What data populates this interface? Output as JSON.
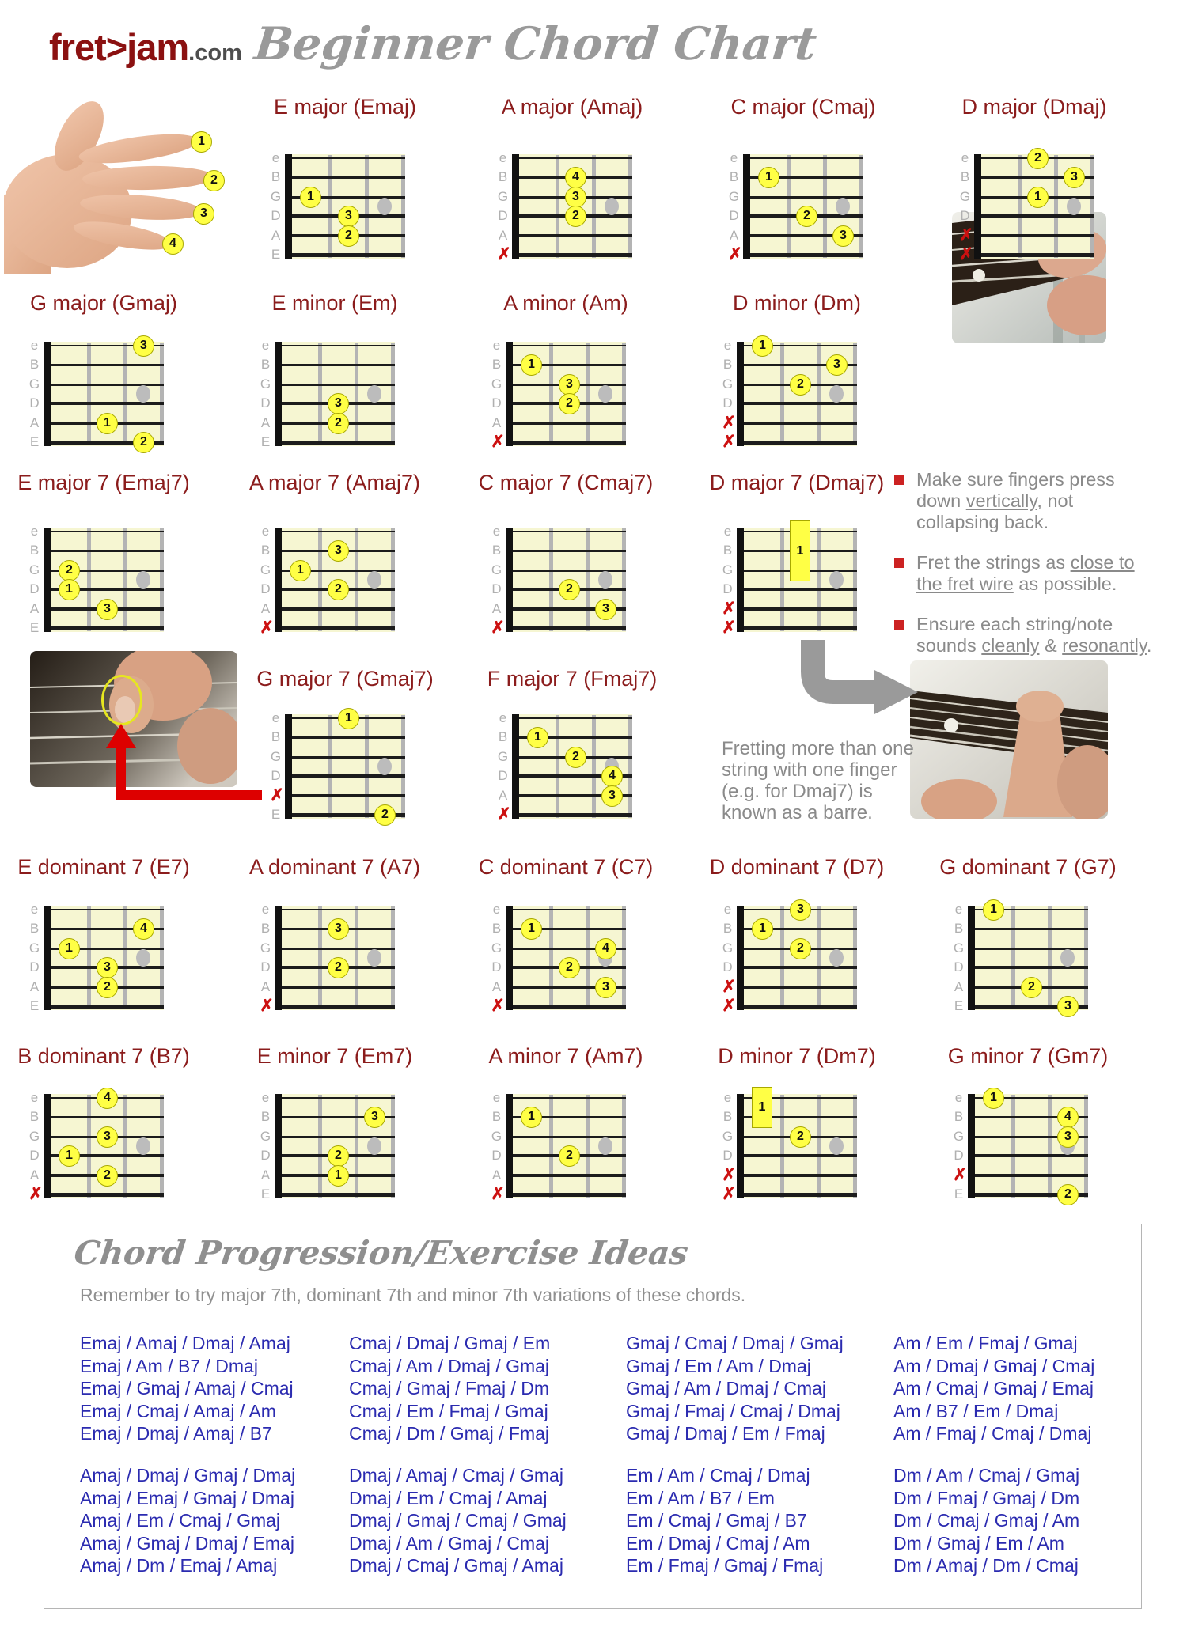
{
  "header": {
    "logo": "fret>jam",
    "logo_suffix": ".com",
    "title": "Beginner Chord Chart"
  },
  "hand": {
    "finger_numbers": [
      "1",
      "2",
      "3",
      "4"
    ]
  },
  "string_names": [
    "e",
    "B",
    "G",
    "D",
    "A",
    "E"
  ],
  "chords": [
    {
      "name": "E major (Emaj)",
      "short": "Emaj",
      "row": "r1",
      "col": 0,
      "fingers": [
        [
          "G",
          1,
          1
        ],
        [
          "D",
          2,
          3
        ],
        [
          "A",
          2,
          2
        ]
      ],
      "muted": []
    },
    {
      "name": "A major (Amaj)",
      "short": "Amaj",
      "row": "r1",
      "col": 1,
      "fingers": [
        [
          "B",
          2,
          4
        ],
        [
          "G",
          2,
          3
        ],
        [
          "D",
          2,
          2
        ]
      ],
      "muted": [
        "E"
      ]
    },
    {
      "name": "C major (Cmaj)",
      "short": "Cmaj",
      "row": "r1",
      "col": 2,
      "fingers": [
        [
          "B",
          1,
          1
        ],
        [
          "D",
          2,
          2
        ],
        [
          "A",
          3,
          3
        ]
      ],
      "muted": [
        "E"
      ]
    },
    {
      "name": "D major (Dmaj)",
      "short": "Dmaj",
      "row": "r1",
      "col": 3,
      "fingers": [
        [
          "e",
          2,
          2
        ],
        [
          "B",
          3,
          3
        ],
        [
          "G",
          2,
          1
        ]
      ],
      "muted": [
        "A",
        "E"
      ]
    },
    {
      "name": "G major (Gmaj)",
      "short": "Gmaj",
      "row": "r2",
      "col": 0,
      "fingers": [
        [
          "e",
          3,
          3
        ],
        [
          "A",
          2,
          1
        ],
        [
          "E",
          3,
          2
        ]
      ],
      "muted": []
    },
    {
      "name": "E minor (Em)",
      "short": "Em",
      "row": "r2",
      "col": 1,
      "fingers": [
        [
          "D",
          2,
          3
        ],
        [
          "A",
          2,
          2
        ]
      ],
      "muted": []
    },
    {
      "name": "A minor (Am)",
      "short": "Am",
      "row": "r2",
      "col": 2,
      "fingers": [
        [
          "B",
          1,
          1
        ],
        [
          "G",
          2,
          3
        ],
        [
          "D",
          2,
          2
        ]
      ],
      "muted": [
        "E"
      ]
    },
    {
      "name": "D minor (Dm)",
      "short": "Dm",
      "row": "r2",
      "col": 3,
      "fingers": [
        [
          "e",
          1,
          1
        ],
        [
          "B",
          3,
          3
        ],
        [
          "G",
          2,
          2
        ]
      ],
      "muted": [
        "A",
        "E"
      ]
    },
    {
      "name": "E major 7 (Emaj7)",
      "short": "Emaj7",
      "row": "r3",
      "col": 0,
      "fingers": [
        [
          "G",
          1,
          2
        ],
        [
          "D",
          1,
          1
        ],
        [
          "A",
          2,
          3
        ]
      ],
      "muted": []
    },
    {
      "name": "A major 7 (Amaj7)",
      "short": "Amaj7",
      "row": "r3",
      "col": 1,
      "fingers": [
        [
          "B",
          2,
          3
        ],
        [
          "G",
          1,
          1
        ],
        [
          "D",
          2,
          2
        ]
      ],
      "muted": [
        "E"
      ]
    },
    {
      "name": "C major 7 (Cmaj7)",
      "short": "Cmaj7",
      "row": "r3",
      "col": 2,
      "fingers": [
        [
          "D",
          2,
          2
        ],
        [
          "A",
          3,
          3
        ]
      ],
      "muted": [
        "E"
      ]
    },
    {
      "name": "D major 7 (Dmaj7)",
      "short": "Dmaj7",
      "row": "r3",
      "col": 3,
      "fingers": [],
      "muted": [
        "A",
        "E"
      ],
      "barre": {
        "fret": 2,
        "from": "e",
        "to": "G",
        "finger": 1
      }
    },
    {
      "name": "G major 7 (Gmaj7)",
      "short": "Gmaj7",
      "row": "r4",
      "col": 0,
      "fingers": [
        [
          "e",
          2,
          1
        ],
        [
          "E",
          3,
          2
        ]
      ],
      "muted": [
        "A"
      ]
    },
    {
      "name": "F major 7 (Fmaj7)",
      "short": "Fmaj7",
      "row": "r4",
      "col": 1,
      "fingers": [
        [
          "B",
          1,
          1
        ],
        [
          "G",
          2,
          2
        ],
        [
          "D",
          3,
          4
        ],
        [
          "A",
          3,
          3
        ]
      ],
      "muted": [
        "E"
      ]
    },
    {
      "name": "E dominant 7 (E7)",
      "short": "E7",
      "row": "r5",
      "col": 0,
      "fingers": [
        [
          "B",
          3,
          4
        ],
        [
          "G",
          1,
          1
        ],
        [
          "D",
          2,
          3
        ],
        [
          "A",
          2,
          2
        ]
      ],
      "muted": []
    },
    {
      "name": "A dominant 7 (A7)",
      "short": "A7",
      "row": "r5",
      "col": 1,
      "fingers": [
        [
          "B",
          2,
          3
        ],
        [
          "D",
          2,
          2
        ]
      ],
      "muted": [
        "E"
      ]
    },
    {
      "name": "C dominant 7 (C7)",
      "short": "C7",
      "row": "r5",
      "col": 2,
      "fingers": [
        [
          "B",
          1,
          1
        ],
        [
          "G",
          3,
          4
        ],
        [
          "D",
          2,
          2
        ],
        [
          "A",
          3,
          3
        ]
      ],
      "muted": [
        "E"
      ]
    },
    {
      "name": "D dominant 7 (D7)",
      "short": "D7",
      "row": "r5",
      "col": 3,
      "fingers": [
        [
          "e",
          2,
          3
        ],
        [
          "B",
          1,
          1
        ],
        [
          "G",
          2,
          2
        ]
      ],
      "muted": [
        "A",
        "E"
      ]
    },
    {
      "name": "G dominant 7 (G7)",
      "short": "G7",
      "row": "r5",
      "col": 4,
      "fingers": [
        [
          "e",
          1,
          1
        ],
        [
          "A",
          2,
          2
        ],
        [
          "E",
          3,
          3
        ]
      ],
      "muted": []
    },
    {
      "name": "B dominant 7 (B7)",
      "short": "B7",
      "row": "r6",
      "col": 0,
      "fingers": [
        [
          "e",
          2,
          4
        ],
        [
          "G",
          2,
          3
        ],
        [
          "D",
          1,
          1
        ],
        [
          "A",
          2,
          2
        ]
      ],
      "muted": [
        "E"
      ]
    },
    {
      "name": "E minor 7 (Em7)",
      "short": "Em7",
      "row": "r6",
      "col": 1,
      "fingers": [
        [
          "B",
          3,
          3
        ],
        [
          "D",
          2,
          2
        ],
        [
          "A",
          2,
          1
        ]
      ],
      "muted": []
    },
    {
      "name": "A minor 7 (Am7)",
      "short": "Am7",
      "row": "r6",
      "col": 2,
      "fingers": [
        [
          "B",
          1,
          1
        ],
        [
          "D",
          2,
          2
        ]
      ],
      "muted": [
        "E"
      ]
    },
    {
      "name": "D minor 7 (Dm7)",
      "short": "Dm7",
      "row": "r6",
      "col": 3,
      "fingers": [
        [
          "G",
          2,
          2
        ]
      ],
      "muted": [
        "A",
        "E"
      ],
      "barre": {
        "fret": 1,
        "from": "e",
        "to": "B",
        "finger": 1
      }
    },
    {
      "name": "G minor 7 (Gm7)",
      "short": "Gm7",
      "row": "r6",
      "col": 4,
      "fingers": [
        [
          "e",
          1,
          1
        ],
        [
          "B",
          3,
          4
        ],
        [
          "G",
          3,
          3
        ],
        [
          "E",
          3,
          2
        ]
      ],
      "muted": [
        "A"
      ]
    }
  ],
  "tips": [
    {
      "segments": [
        {
          "t": "Make sure fingers press down "
        },
        {
          "t": "vertically",
          "u": true
        },
        {
          "t": ", not collapsing back."
        }
      ]
    },
    {
      "segments": [
        {
          "t": "Fret the strings as "
        },
        {
          "t": "close to the fret wire",
          "u": true
        },
        {
          "t": " as possible."
        }
      ]
    },
    {
      "segments": [
        {
          "t": "Ensure each string/note sounds "
        },
        {
          "t": "cleanly",
          "u": true
        },
        {
          "t": " & "
        },
        {
          "t": "resonantly",
          "u": true
        },
        {
          "t": "."
        }
      ]
    }
  ],
  "barre_note": "Fretting more than one string with one finger (e.g. for Dmaj7) is known as a barre.",
  "progressions": {
    "title": "Chord Progression/Exercise Ideas",
    "subtitle": "Remember to try major 7th, dominant 7th and minor 7th variations of these chords.",
    "columns": [
      {
        "groups": [
          [
            "Emaj / Amaj / Dmaj / Amaj",
            "Emaj / Am / B7 / Dmaj",
            "Emaj / Gmaj / Amaj / Cmaj",
            "Emaj / Cmaj / Amaj / Am",
            "Emaj / Dmaj / Amaj / B7"
          ],
          [
            "Amaj / Dmaj / Gmaj / Dmaj",
            "Amaj / Emaj / Gmaj / Dmaj",
            "Amaj / Em / Cmaj / Gmaj",
            "Amaj / Gmaj / Dmaj / Emaj",
            "Amaj / Dm / Emaj / Amaj"
          ]
        ]
      },
      {
        "groups": [
          [
            "Cmaj / Dmaj / Gmaj / Em",
            "Cmaj / Am / Dmaj / Gmaj",
            "Cmaj / Gmaj / Fmaj / Dm",
            "Cmaj / Em / Fmaj / Gmaj",
            "Cmaj / Dm / Gmaj / Fmaj"
          ],
          [
            "Dmaj / Amaj / Cmaj / Gmaj",
            "Dmaj / Em / Cmaj / Amaj",
            "Dmaj / Gmaj / Cmaj / Gmaj",
            "Dmaj / Am / Gmaj / Cmaj",
            "Dmaj / Cmaj / Gmaj / Amaj"
          ]
        ]
      },
      {
        "groups": [
          [
            "Gmaj / Cmaj / Dmaj / Gmaj",
            "Gmaj / Em / Am / Dmaj",
            "Gmaj / Am / Dmaj / Cmaj",
            "Gmaj / Fmaj / Cmaj / Dmaj",
            "Gmaj / Dmaj / Em / Fmaj"
          ],
          [
            "Em / Am / Cmaj / Dmaj",
            "Em / Am / B7 / Em",
            "Em / Cmaj / Gmaj / B7",
            "Em / Dmaj / Cmaj / Am",
            "Em / Fmaj / Gmaj / Fmaj"
          ]
        ]
      },
      {
        "groups": [
          [
            "Am / Em / Fmaj / Gmaj",
            "Am / Dmaj / Gmaj / Cmaj",
            "Am / Cmaj / Gmaj / Emaj",
            "Am / B7 / Em / Dmaj",
            "Am / Fmaj / Cmaj / Dmaj"
          ],
          [
            "Dm / Am / Cmaj / Gmaj",
            "Dm / Fmaj / Gmaj / Dm",
            "Dm / Cmaj / Gmaj / Am",
            "Dm / Gmaj / Em / Am",
            "Dm / Amaj / Dm / Cmaj"
          ]
        ]
      }
    ]
  },
  "colors": {
    "chord_title_red": "#8b1c1c",
    "logo_red": "#8b1111",
    "muted_x_red": "#cc1111",
    "finger_yellow": "#ffff45",
    "board_yellow": "#f6f6d2",
    "fret_wire_gray": "#b4b4b4",
    "marker_gray": "#bcbcbc",
    "progression_blue": "#2b2bb0",
    "script_gray": "#9a9a9a"
  }
}
